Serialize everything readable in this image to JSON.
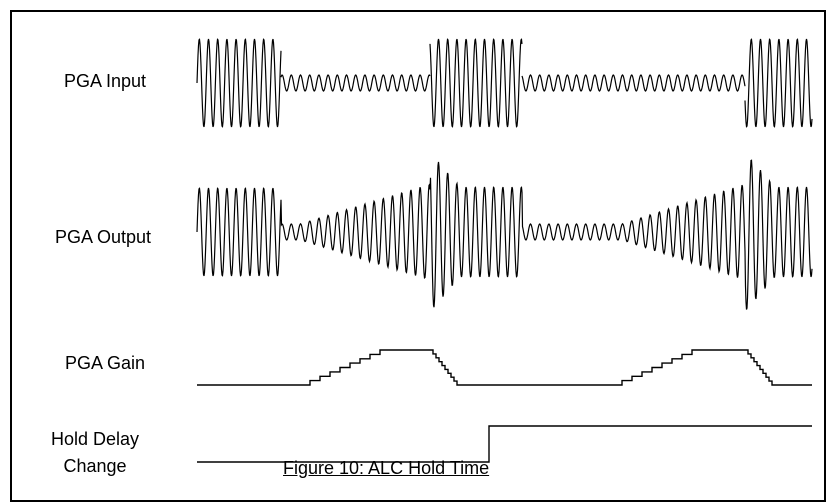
{
  "labels": {
    "pga_input": "PGA Input",
    "pga_output": "PGA Output",
    "pga_gain": "PGA Gain",
    "hold_delay_line1": "Hold Delay",
    "hold_delay_line2": "Change"
  },
  "caption": "Figure 10:  ALC Hold Time",
  "colors": {
    "stroke": "#000000",
    "background": "#ffffff"
  }
}
